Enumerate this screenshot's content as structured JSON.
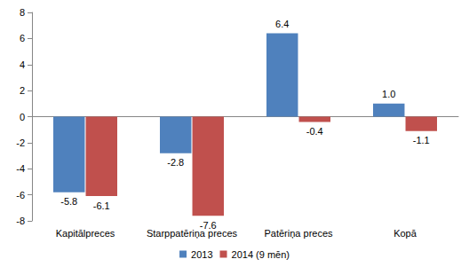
{
  "chart_data": {
    "type": "bar",
    "categories": [
      "Kapitālpreces",
      "Starppatēriņa preces",
      "Patēriņa preces",
      "Kopā"
    ],
    "series": [
      {
        "name": "2013",
        "color": "#4F81BD",
        "values": [
          -5.8,
          -2.8,
          6.4,
          1.0
        ],
        "value_labels": [
          "-5.8",
          "-2.8",
          "6.4",
          "1.0"
        ]
      },
      {
        "name": "2014 (9 mēn)",
        "color": "#C0504D",
        "values": [
          -6.1,
          -7.6,
          -0.4,
          -1.1
        ]
      }
    ],
    "ylim": [
      -8,
      8
    ],
    "yticks": [
      -8,
      -6,
      -4,
      -2,
      0,
      2,
      4,
      6,
      8
    ],
    "grid": false,
    "legend": "bottom",
    "data_labels": true
  }
}
